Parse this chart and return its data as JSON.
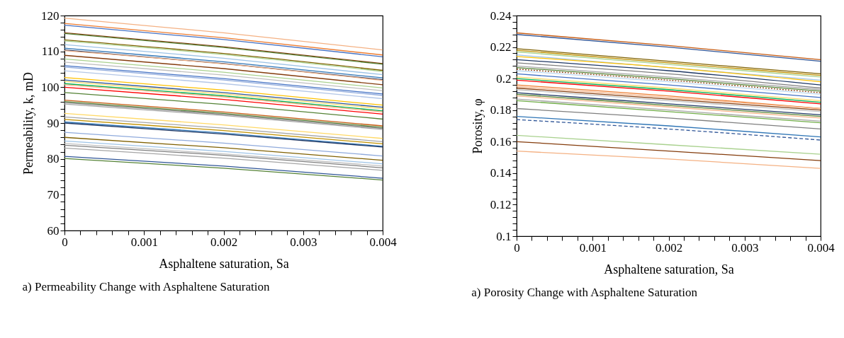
{
  "chart_data": [
    {
      "type": "line",
      "xlabel": "Asphaltene saturation, Sa",
      "ylabel": "Permeability, k, mD",
      "annotations": [
        "a) Permeability Change with Asphaltene Saturation"
      ],
      "x": [
        0,
        0.002,
        0.004
      ],
      "xlim": [
        0,
        0.004
      ],
      "xticks": [
        0,
        {
          "value": 0.0002,
          "label": null
        },
        {
          "value": 0.0004,
          "label": null
        },
        {
          "value": 0.0006,
          "label": null
        },
        {
          "value": 0.0008,
          "label": null
        },
        0.001,
        {
          "value": 0.0012,
          "label": null
        },
        {
          "value": 0.0014,
          "label": null
        },
        {
          "value": 0.0016,
          "label": null
        },
        {
          "value": 0.0018,
          "label": null
        },
        0.002,
        {
          "value": 0.0022,
          "label": null
        },
        {
          "value": 0.0024,
          "label": null
        },
        {
          "value": 0.0026,
          "label": null
        },
        {
          "value": 0.0028,
          "label": null
        },
        0.003,
        {
          "value": 0.0032,
          "label": null
        },
        {
          "value": 0.0034,
          "label": null
        },
        {
          "value": 0.0036,
          "label": null
        },
        {
          "value": 0.0038,
          "label": null
        },
        0.004
      ],
      "ylim": [
        60,
        120
      ],
      "yticks": [
        60,
        {
          "value": 62,
          "label": null
        },
        {
          "value": 64,
          "label": null
        },
        {
          "value": 66,
          "label": null
        },
        {
          "value": 68,
          "label": null
        },
        70,
        {
          "value": 72,
          "label": null
        },
        {
          "value": 74,
          "label": null
        },
        {
          "value": 76,
          "label": null
        },
        {
          "value": 78,
          "label": null
        },
        80,
        {
          "value": 82,
          "label": null
        },
        {
          "value": 84,
          "label": null
        },
        {
          "value": 86,
          "label": null
        },
        {
          "value": 88,
          "label": null
        },
        90,
        {
          "value": 92,
          "label": null
        },
        {
          "value": 94,
          "label": null
        },
        {
          "value": 96,
          "label": null
        },
        {
          "value": 98,
          "label": null
        },
        100,
        {
          "value": 102,
          "label": null
        },
        {
          "value": 104,
          "label": null
        },
        {
          "value": 106,
          "label": null
        },
        {
          "value": 108,
          "label": null
        },
        110,
        {
          "value": 112,
          "label": null
        },
        {
          "value": 114,
          "label": null
        },
        {
          "value": 116,
          "label": null
        },
        {
          "value": 118,
          "label": null
        },
        120
      ],
      "grid": false,
      "marker": "none",
      "line_style": "solid",
      "series": [
        {
          "color": "#f4b183",
          "values": [
            119.3,
            115.2,
            110.4
          ]
        },
        {
          "color": "#ed7d31",
          "values": [
            117.8,
            113.8,
            109.0
          ]
        },
        {
          "color": "#4472c4",
          "values": [
            117.3,
            113.3,
            108.5
          ]
        },
        {
          "color": "#843c0c",
          "values": [
            115.2,
            111.3,
            106.6
          ]
        },
        {
          "color": "#548235",
          "values": [
            115.0,
            111.1,
            106.4
          ]
        },
        {
          "color": "#7f6000",
          "values": [
            113.2,
            109.4,
            104.7
          ]
        },
        {
          "color": "#a9d18e",
          "values": [
            112.9,
            109.1,
            104.4
          ]
        },
        {
          "color": "#9dc3e6",
          "values": [
            111.9,
            108.1,
            103.5
          ]
        },
        {
          "color": "#2e75b6",
          "values": [
            110.9,
            107.1,
            102.6
          ]
        },
        {
          "color": "#1f3864",
          "values": [
            110.4,
            106.6,
            102.1
          ]
        },
        {
          "color": "#f4b183",
          "values": [
            110.2,
            106.5,
            101.9
          ]
        },
        {
          "color": "#843c0c",
          "values": [
            108.9,
            105.2,
            100.7
          ]
        },
        {
          "color": "#a9d18e",
          "values": [
            107.9,
            104.2,
            99.8
          ]
        },
        {
          "color": "#bfbfbf",
          "values": [
            107.0,
            103.4,
            99.0
          ]
        },
        {
          "color": "#4472c4",
          "values": [
            106.0,
            102.4,
            98.1
          ]
        },
        {
          "color": "#8faadc",
          "values": [
            105.6,
            102.0,
            97.7
          ]
        },
        {
          "color": "#b4c7e7",
          "values": [
            104.6,
            101.0,
            96.8
          ]
        },
        {
          "color": "#ffc000",
          "values": [
            102.7,
            99.2,
            95.0
          ]
        },
        {
          "color": "#2f5597",
          "values": [
            102.0,
            98.5,
            94.4
          ]
        },
        {
          "color": "#ffd966",
          "values": [
            101.6,
            98.1,
            94.0
          ]
        },
        {
          "color": "#00b050",
          "values": [
            101.0,
            97.6,
            93.4
          ]
        },
        {
          "color": "#f4b183",
          "values": [
            100.7,
            97.3,
            93.1
          ]
        },
        {
          "color": "#ff0000",
          "values": [
            100.0,
            96.6,
            92.5
          ]
        },
        {
          "color": "#548235",
          "values": [
            98.5,
            95.2,
            91.1
          ]
        },
        {
          "color": "#c55a11",
          "values": [
            96.4,
            93.1,
            89.2
          ]
        },
        {
          "color": "#548235",
          "values": [
            96.0,
            92.7,
            88.8
          ]
        },
        {
          "color": "#7f7f7f",
          "values": [
            95.7,
            92.4,
            88.5
          ]
        },
        {
          "color": "#a6a6a6",
          "values": [
            95.3,
            92.1,
            88.2
          ]
        },
        {
          "color": "#ffd966",
          "values": [
            92.7,
            89.5,
            85.7
          ]
        },
        {
          "color": "#a6a6a6",
          "values": [
            91.7,
            88.6,
            84.8
          ]
        },
        {
          "color": "#bf9000",
          "values": [
            91.0,
            87.9,
            84.2
          ]
        },
        {
          "color": "#2e75b6",
          "values": [
            90.3,
            87.2,
            83.5
          ]
        },
        {
          "color": "#1f3864",
          "values": [
            90.0,
            86.9,
            83.3
          ]
        },
        {
          "color": "#8faadc",
          "values": [
            87.4,
            84.4,
            80.8
          ]
        },
        {
          "color": "#7f6000",
          "values": [
            86.0,
            83.1,
            79.6
          ]
        },
        {
          "color": "#9dc3e6",
          "values": [
            85.0,
            82.1,
            78.6
          ]
        },
        {
          "color": "#bfbfbf",
          "values": [
            84.3,
            81.4,
            78.0
          ]
        },
        {
          "color": "#7f7f7f",
          "values": [
            83.8,
            81.0,
            77.5
          ]
        },
        {
          "color": "#a6a6a6",
          "values": [
            83.0,
            80.2,
            76.8
          ]
        },
        {
          "color": "#2f5597",
          "values": [
            80.7,
            78.0,
            74.6
          ]
        },
        {
          "color": "#548235",
          "values": [
            80.1,
            77.4,
            74.1
          ]
        }
      ]
    },
    {
      "type": "line",
      "xlabel": "Asphaltene saturation, Sa",
      "ylabel": "Porosity, φ",
      "annotations": [
        "a) Porosity Change with Asphaltene Saturation"
      ],
      "x": [
        0,
        0.002,
        0.004
      ],
      "xlim": [
        0,
        0.004
      ],
      "xticks": [
        0,
        {
          "value": 0.0002,
          "label": null
        },
        {
          "value": 0.0004,
          "label": null
        },
        {
          "value": 0.0006,
          "label": null
        },
        {
          "value": 0.0008,
          "label": null
        },
        0.001,
        {
          "value": 0.0012,
          "label": null
        },
        {
          "value": 0.0014,
          "label": null
        },
        {
          "value": 0.0016,
          "label": null
        },
        {
          "value": 0.0018,
          "label": null
        },
        0.002,
        {
          "value": 0.0022,
          "label": null
        },
        {
          "value": 0.0024,
          "label": null
        },
        {
          "value": 0.0026,
          "label": null
        },
        {
          "value": 0.0028,
          "label": null
        },
        0.003,
        {
          "value": 0.0032,
          "label": null
        },
        {
          "value": 0.0034,
          "label": null
        },
        {
          "value": 0.0036,
          "label": null
        },
        {
          "value": 0.0038,
          "label": null
        },
        0.004
      ],
      "ylim": [
        0.1,
        0.24
      ],
      "yticks": [
        0.1,
        {
          "value": 0.104,
          "label": null
        },
        {
          "value": 0.108,
          "label": null
        },
        {
          "value": 0.112,
          "label": null
        },
        {
          "value": 0.116,
          "label": null
        },
        0.12,
        {
          "value": 0.124,
          "label": null
        },
        {
          "value": 0.128,
          "label": null
        },
        {
          "value": 0.132,
          "label": null
        },
        {
          "value": 0.136,
          "label": null
        },
        0.14,
        {
          "value": 0.144,
          "label": null
        },
        {
          "value": 0.148,
          "label": null
        },
        {
          "value": 0.152,
          "label": null
        },
        {
          "value": 0.156,
          "label": null
        },
        0.16,
        {
          "value": 0.164,
          "label": null
        },
        {
          "value": 0.168,
          "label": null
        },
        {
          "value": 0.172,
          "label": null
        },
        {
          "value": 0.176,
          "label": null
        },
        0.18,
        {
          "value": 0.184,
          "label": null
        },
        {
          "value": 0.188,
          "label": null
        },
        {
          "value": 0.192,
          "label": null
        },
        {
          "value": 0.196,
          "label": null
        },
        0.2,
        {
          "value": 0.204,
          "label": null
        },
        {
          "value": 0.208,
          "label": null
        },
        {
          "value": 0.212,
          "label": null
        },
        {
          "value": 0.216,
          "label": null
        },
        0.22,
        {
          "value": 0.224,
          "label": null
        },
        {
          "value": 0.228,
          "label": null
        },
        {
          "value": 0.232,
          "label": null
        },
        {
          "value": 0.236,
          "label": null
        },
        0.24
      ],
      "grid": false,
      "marker": "none",
      "line_style": "solid",
      "series": [
        {
          "color": "#c55a11",
          "values": [
            0.229,
            0.221,
            0.212
          ]
        },
        {
          "color": "#2f5597",
          "values": [
            0.228,
            0.22,
            0.211
          ]
        },
        {
          "color": "#7f6000",
          "values": [
            0.219,
            0.211,
            0.203
          ]
        },
        {
          "color": "#bf9000",
          "values": [
            0.218,
            0.21,
            0.202
          ]
        },
        {
          "color": "#a9d18e",
          "values": [
            0.217,
            0.209,
            0.201
          ]
        },
        {
          "color": "#9dc3e6",
          "values": [
            0.215,
            0.207,
            0.199
          ]
        },
        {
          "color": "#ffc000",
          "values": [
            0.214,
            0.207,
            0.198
          ]
        },
        {
          "color": "#1f3864",
          "values": [
            0.212,
            0.205,
            0.196
          ]
        },
        {
          "color": "#7f7f7f",
          "values": [
            0.21,
            0.203,
            0.194
          ]
        },
        {
          "color": "#a6a6a6",
          "values": [
            0.208,
            0.201,
            0.193
          ]
        },
        {
          "color": "#548235",
          "values": [
            0.207,
            0.2,
            0.192
          ]
        },
        {
          "color": "#843c0c",
          "values": [
            0.206,
            0.199,
            0.191
          ],
          "line_style": "dotted"
        },
        {
          "color": "#bdd7ee",
          "values": [
            0.205,
            0.198,
            0.19
          ]
        },
        {
          "color": "#4472c4",
          "values": [
            0.203,
            0.196,
            0.188
          ]
        },
        {
          "color": "#ffd966",
          "values": [
            0.201,
            0.194,
            0.186
          ]
        },
        {
          "color": "#00b050",
          "values": [
            0.2,
            0.193,
            0.185
          ]
        },
        {
          "color": "#ff0000",
          "values": [
            0.199,
            0.192,
            0.184
          ]
        },
        {
          "color": "#ed7d31",
          "values": [
            0.196,
            0.189,
            0.181
          ]
        },
        {
          "color": "#f4b183",
          "values": [
            0.195,
            0.188,
            0.181
          ]
        },
        {
          "color": "#843c0c",
          "values": [
            0.194,
            0.187,
            0.18
          ]
        },
        {
          "color": "#bfbfbf",
          "values": [
            0.193,
            0.186,
            0.179
          ]
        },
        {
          "color": "#1f3864",
          "values": [
            0.191,
            0.184,
            0.177
          ]
        },
        {
          "color": "#548235",
          "values": [
            0.19,
            0.183,
            0.176
          ]
        },
        {
          "color": "#f4b183",
          "values": [
            0.189,
            0.182,
            0.175
          ]
        },
        {
          "color": "#a6a6a6",
          "values": [
            0.187,
            0.18,
            0.173
          ]
        },
        {
          "color": "#70ad47",
          "values": [
            0.186,
            0.179,
            0.172
          ]
        },
        {
          "color": "#7f7f7f",
          "values": [
            0.181,
            0.175,
            0.168
          ]
        },
        {
          "color": "#2e75b6",
          "values": [
            0.176,
            0.17,
            0.163
          ]
        },
        {
          "color": "#2f5597",
          "values": [
            0.174,
            0.168,
            0.161
          ],
          "line_style": "dashed"
        },
        {
          "color": "#a9d18e",
          "values": [
            0.164,
            0.158,
            0.152
          ]
        },
        {
          "color": "#843c0c",
          "values": [
            0.16,
            0.154,
            0.148
          ]
        },
        {
          "color": "#f4b183",
          "values": [
            0.154,
            0.149,
            0.143
          ]
        }
      ]
    }
  ]
}
